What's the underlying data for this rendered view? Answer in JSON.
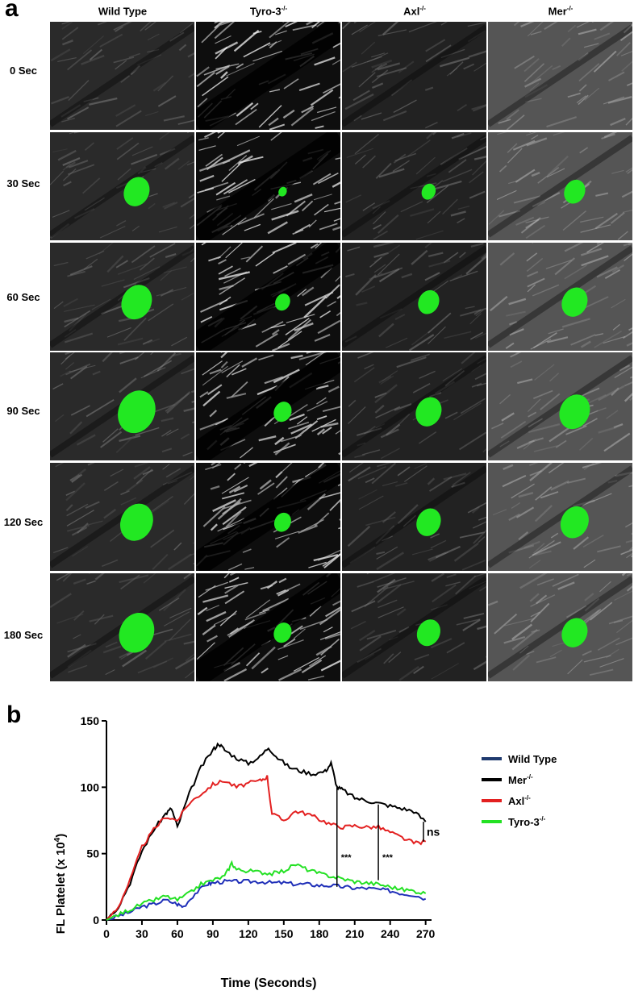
{
  "panel_a": {
    "letter": "a",
    "columns": [
      {
        "name": "Wild Type",
        "sup": ""
      },
      {
        "name": "Tyro-3",
        "sup": "-/-"
      },
      {
        "name": "Axl",
        "sup": "-/-"
      },
      {
        "name": "Mer",
        "sup": "-/-"
      }
    ],
    "rows": [
      "0 Sec",
      "30 Sec",
      "60 Sec",
      "90 Sec",
      "120 Sec",
      "180 Sec"
    ],
    "colors": {
      "platelet": "#22e822",
      "tissue_dark": "#1e1e1e",
      "tissue_light": "#d8d8d8"
    },
    "thrombus_sizes": [
      [
        0,
        0.55,
        0.65,
        0.8,
        0.7,
        0.75
      ],
      [
        0,
        0.18,
        0.32,
        0.38,
        0.36,
        0.38
      ],
      [
        0,
        0.3,
        0.45,
        0.55,
        0.52,
        0.5
      ],
      [
        0,
        0.45,
        0.55,
        0.65,
        0.6,
        0.55
      ]
    ]
  },
  "chart_data": {
    "letter": "b",
    "type": "line",
    "title": "",
    "xlabel": "Time (Seconds)",
    "ylabel_main": "FL Platelet (x 10",
    "ylabel_sup": "4",
    "ylabel_end": ")",
    "xlim": [
      0,
      275
    ],
    "ylim": [
      0,
      150
    ],
    "xticks": [
      0,
      30,
      60,
      90,
      120,
      150,
      180,
      210,
      240,
      270
    ],
    "yticks": [
      0,
      50,
      100,
      150
    ],
    "legend_position": "right",
    "series": [
      {
        "name": "Wild Type",
        "sup": "",
        "color": "#1f2fb8",
        "x": [
          0,
          10,
          20,
          30,
          40,
          50,
          60,
          65,
          75,
          85,
          90,
          100,
          110,
          120,
          130,
          140,
          150,
          160,
          170,
          180,
          190,
          200,
          210,
          220,
          230,
          240,
          250,
          260,
          270
        ],
        "y": [
          0,
          3,
          6,
          10,
          12,
          15,
          12,
          10,
          20,
          27,
          28,
          29,
          29,
          29,
          29,
          28,
          28,
          27,
          27,
          26,
          26,
          25,
          24,
          24,
          23,
          22,
          20,
          19,
          16
        ]
      },
      {
        "name": "Mer",
        "sup": "-/-",
        "color": "#000000",
        "x": [
          0,
          10,
          20,
          30,
          40,
          50,
          55,
          60,
          70,
          80,
          90,
          95,
          100,
          110,
          120,
          130,
          137,
          145,
          155,
          165,
          175,
          185,
          190,
          195,
          200,
          210,
          220,
          230,
          240,
          250,
          260,
          270
        ],
        "y": [
          0,
          10,
          28,
          52,
          68,
          80,
          84,
          70,
          95,
          115,
          128,
          133,
          128,
          122,
          118,
          123,
          130,
          122,
          115,
          112,
          110,
          112,
          118,
          100,
          98,
          92,
          90,
          88,
          86,
          84,
          82,
          74
        ]
      },
      {
        "name": "Axl",
        "sup": "-/-",
        "color": "#e32020",
        "x": [
          0,
          10,
          20,
          30,
          40,
          50,
          60,
          70,
          80,
          90,
          100,
          110,
          120,
          130,
          136,
          140,
          150,
          160,
          170,
          180,
          190,
          200,
          210,
          220,
          230,
          240,
          250,
          260,
          270
        ],
        "y": [
          0,
          10,
          30,
          55,
          68,
          78,
          75,
          88,
          95,
          102,
          105,
          100,
          103,
          105,
          108,
          80,
          75,
          82,
          80,
          76,
          72,
          70,
          71,
          70,
          70,
          66,
          62,
          58,
          59
        ]
      },
      {
        "name": "Tyro-3",
        "sup": "-/-",
        "color": "#23e123",
        "x": [
          0,
          10,
          20,
          30,
          40,
          50,
          60,
          70,
          80,
          90,
          100,
          106,
          110,
          120,
          130,
          140,
          150,
          160,
          170,
          180,
          190,
          200,
          210,
          220,
          230,
          240,
          250,
          260,
          270
        ],
        "y": [
          0,
          4,
          8,
          12,
          15,
          18,
          15,
          20,
          27,
          30,
          33,
          43,
          38,
          37,
          36,
          35,
          37,
          42,
          38,
          35,
          33,
          31,
          29,
          28,
          27,
          25,
          23,
          22,
          20
        ]
      }
    ],
    "annotations": [
      {
        "label": "***",
        "x": 195,
        "y_top": 100,
        "y_bottom": 25
      },
      {
        "label": "***",
        "x": 230,
        "y_top": 87,
        "y_bottom": 30
      },
      {
        "label": "ns",
        "x": 275,
        "y_top": 74,
        "y_bottom": 59
      }
    ]
  }
}
